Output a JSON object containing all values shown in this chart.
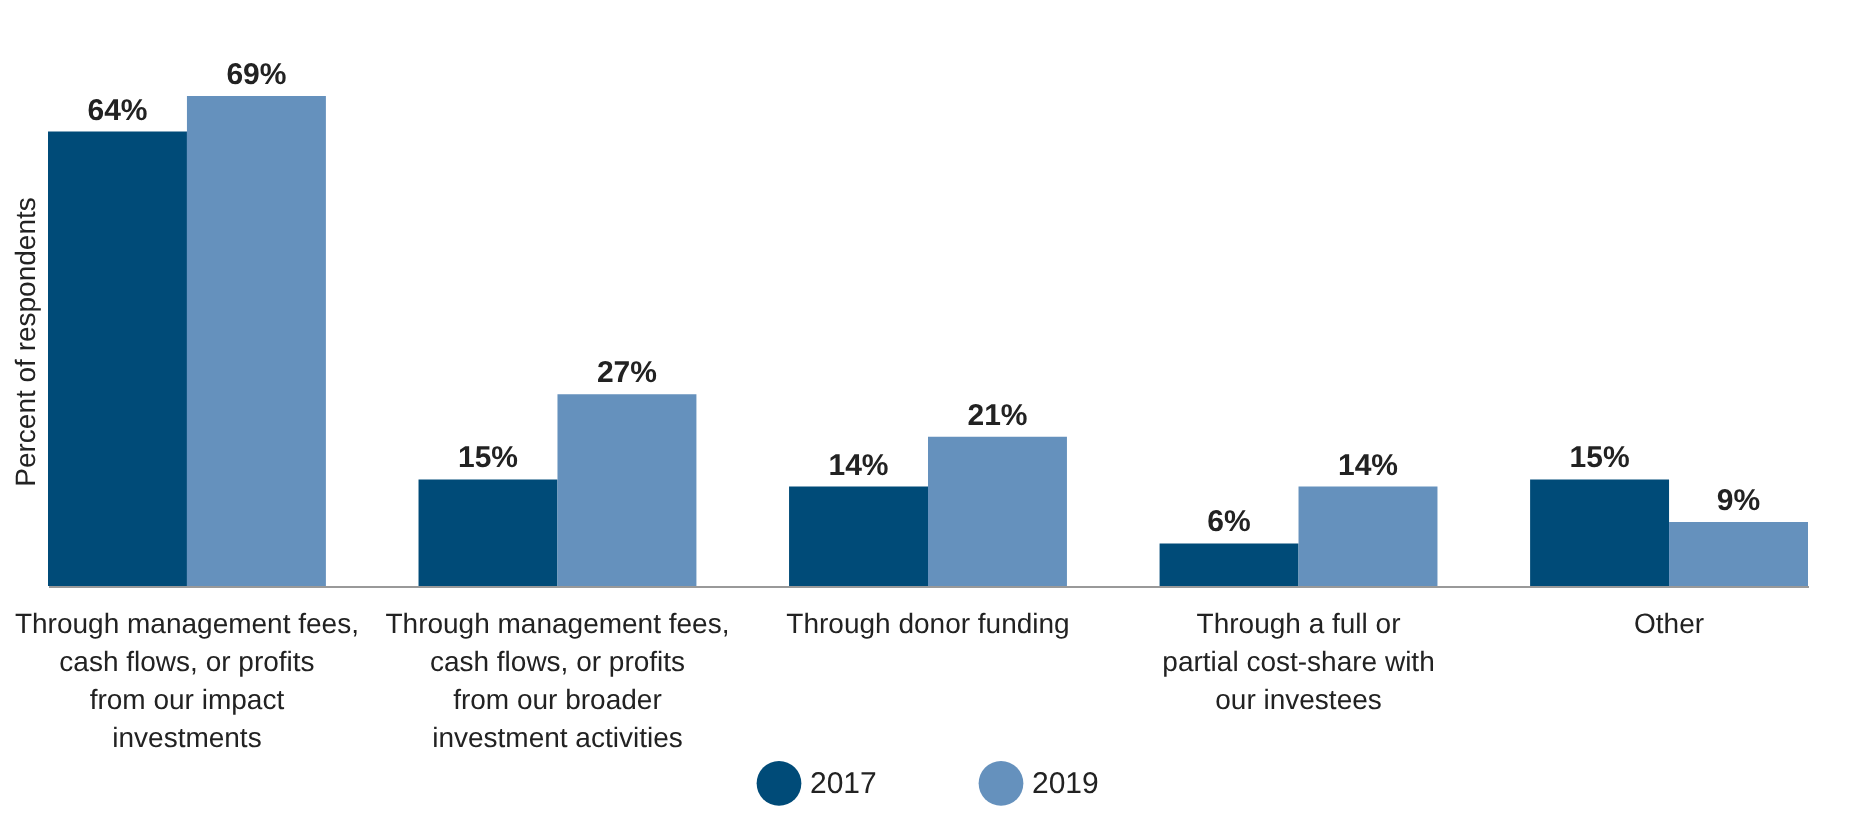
{
  "chart_data": {
    "type": "bar",
    "ylabel": "Percent of respondents",
    "categories": [
      "Through management fees, cash flows, or profits from our impact investments",
      "Through management fees, cash flows, or profits from our broader investment activities",
      "Through donor funding",
      "Through a full or partial cost-share with our investees",
      "Other"
    ],
    "series": [
      {
        "name": "2017",
        "color": "#004b78",
        "values": [
          64,
          15,
          14,
          6,
          15
        ],
        "value_labels": [
          "64%",
          "15%",
          "14%",
          "6%",
          "15%"
        ]
      },
      {
        "name": "2019",
        "color": "#6591bd",
        "values": [
          69,
          27,
          21,
          14,
          9
        ],
        "value_labels": [
          "69%",
          "27%",
          "21%",
          "14%",
          "9%"
        ]
      }
    ],
    "legend": "bottom",
    "grid": false
  }
}
